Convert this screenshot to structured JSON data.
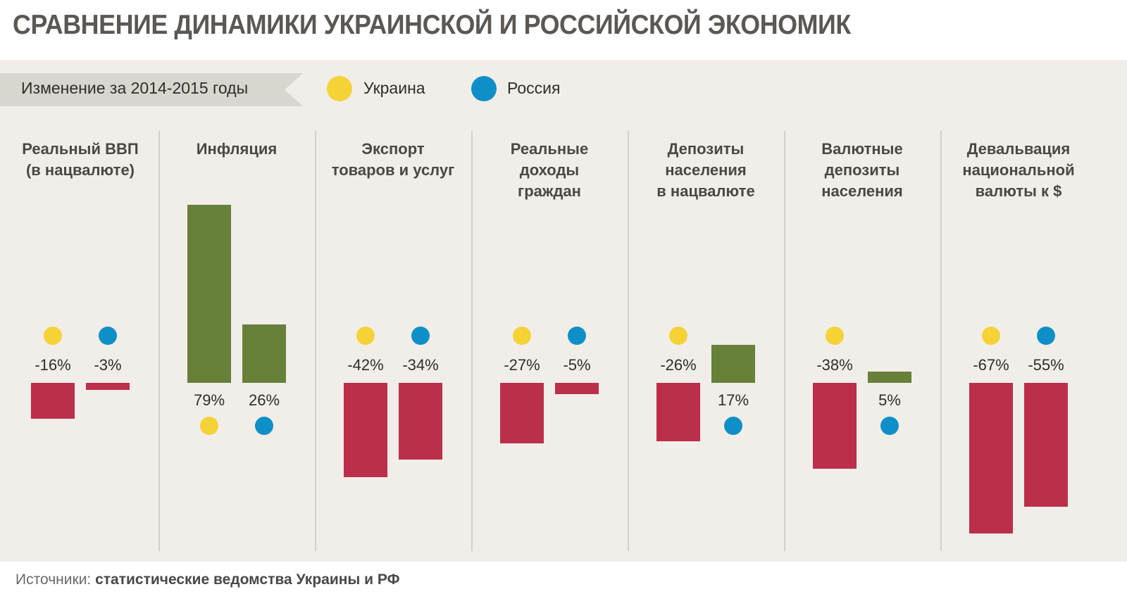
{
  "title": "СРАВНЕНИЕ ДИНАМИКИ УКРАИНСКОЙ И РОССИЙСКОЙ ЭКОНОМИК",
  "period_label": "Изменение за 2014-2015 годы",
  "legend": [
    {
      "name": "Украина",
      "color": "#f5d236"
    },
    {
      "name": "Россия",
      "color": "#0f8fc7"
    }
  ],
  "colors": {
    "positive": "#67803a",
    "negative": "#bc2f4a"
  },
  "source": {
    "prefix": "Источники:",
    "text": "статистические ведомства Украины и РФ"
  },
  "chart_data": {
    "type": "bar",
    "title": "СРАВНЕНИЕ ДИНАМИКИ УКРАИНСКОЙ И РОССИЙСКОЙ ЭКОНОМИК",
    "subtitle": "Изменение за 2014-2015 годы",
    "xlabel": "",
    "ylabel": "",
    "ylim": [
      -70,
      80
    ],
    "grid": false,
    "legend_position": "top-left",
    "categories": [
      [
        "Реальный ВВП",
        "(в нацвалюте)"
      ],
      [
        "Инфляция"
      ],
      [
        "Экспорт",
        "товаров и услуг"
      ],
      [
        "Реальные",
        "доходы",
        "граждан"
      ],
      [
        "Депозиты",
        "населения",
        "в нацвалюте"
      ],
      [
        "Валютные",
        "депозиты",
        "населения"
      ],
      [
        "Девальвация",
        "национальной",
        "валюты к $"
      ]
    ],
    "series": [
      {
        "name": "Украина",
        "values": [
          -16,
          79,
          -42,
          -27,
          -26,
          -38,
          -67
        ],
        "labels": [
          "-16%",
          "79%",
          "-42%",
          "-27%",
          "-26%",
          "-38%",
          "-67%"
        ]
      },
      {
        "name": "Россия",
        "values": [
          -3,
          26,
          -34,
          -5,
          17,
          5,
          -55
        ],
        "labels": [
          "-3%",
          "26%",
          "-34%",
          "-5%",
          "17%",
          "5%",
          "-55%"
        ]
      }
    ]
  }
}
